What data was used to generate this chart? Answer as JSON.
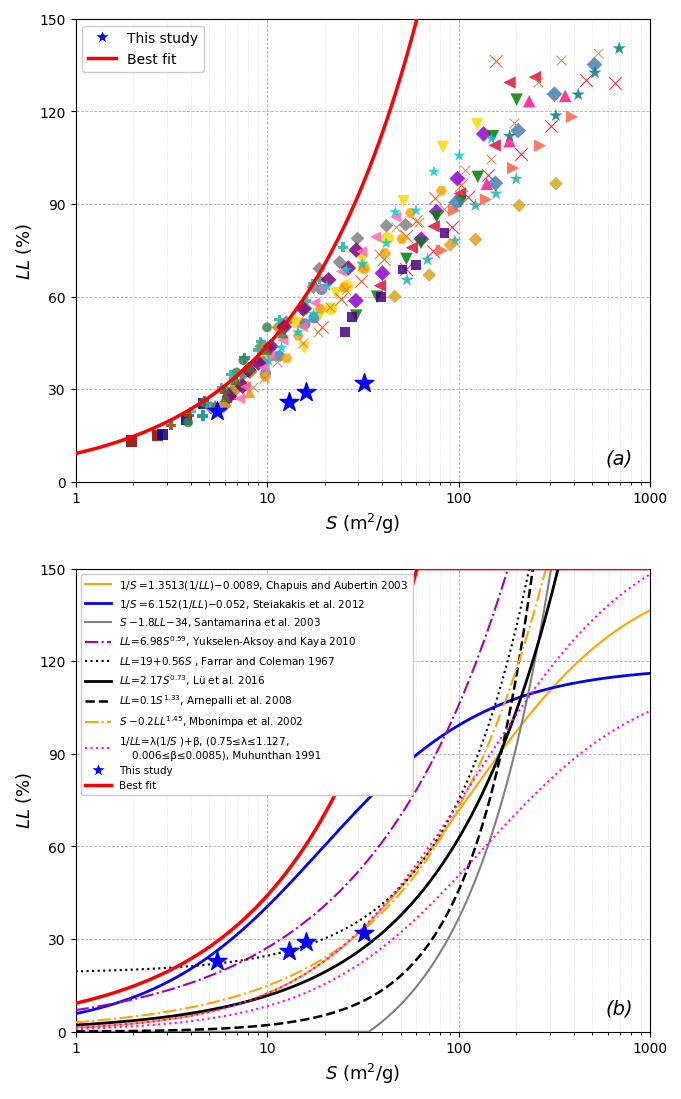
{
  "this_study_S": [
    5.5,
    13.0,
    16.0,
    32.0
  ],
  "this_study_LL": [
    23,
    26,
    29,
    32
  ],
  "best_fit_a": 9.2,
  "best_fit_b": 0.68,
  "ylim": [
    0,
    150
  ],
  "yticks": [
    0,
    30,
    60,
    90,
    120,
    150
  ],
  "panel_a_label": "(a)",
  "panel_b_label": "(b)",
  "scatter_datasets": [
    {
      "S": [
        2.0,
        2.5
      ],
      "LL": [
        13,
        15
      ],
      "color": "#8B0000",
      "marker": "s",
      "ms": 8
    },
    {
      "S": [
        3.0,
        4.0,
        5.0
      ],
      "LL": [
        15,
        20,
        25
      ],
      "color": "#00008B",
      "marker": "s",
      "ms": 8
    },
    {
      "S": [
        5.0,
        6.0,
        7.0,
        8.0
      ],
      "LL": [
        22,
        28,
        35,
        40
      ],
      "color": "#008B8B",
      "marker": "P",
      "ms": 8
    },
    {
      "S": [
        6.0,
        7.0,
        8.0,
        10.0,
        12.0
      ],
      "LL": [
        25,
        30,
        35,
        45,
        50
      ],
      "color": "#B8860B",
      "marker": "D",
      "ms": 8
    },
    {
      "S": [
        8.0,
        10.0,
        15.0,
        20.0
      ],
      "LL": [
        30,
        38,
        50,
        65
      ],
      "color": "#FF8C00",
      "marker": "^",
      "ms": 8
    },
    {
      "S": [
        4.0,
        5.0,
        6.0,
        7.0,
        8.0,
        10.0
      ],
      "LL": [
        20,
        25,
        30,
        35,
        40,
        50
      ],
      "color": "#2E8B57",
      "marker": "o",
      "ms": 7
    },
    {
      "S": [
        10.0,
        15.0,
        20.0,
        25.0,
        30.0,
        40.0
      ],
      "LL": [
        40,
        50,
        58,
        65,
        72,
        80
      ],
      "color": "#FFD700",
      "marker": "o",
      "ms": 9
    },
    {
      "S": [
        10.0,
        12.0,
        15.0,
        18.0,
        20.0
      ],
      "LL": [
        35,
        42,
        50,
        55,
        60
      ],
      "color": "#4682B4",
      "marker": "o",
      "ms": 8
    },
    {
      "S": [
        15.0,
        20.0,
        25.0,
        30.0,
        50.0,
        80.0,
        120.0
      ],
      "LL": [
        45,
        55,
        63,
        70,
        90,
        110,
        120
      ],
      "color": "#FFD700",
      "marker": "v",
      "ms": 9
    },
    {
      "S": [
        20.0,
        25.0,
        30.0,
        40.0,
        50.0,
        60.0,
        80.0,
        100.0,
        150.0
      ],
      "LL": [
        50,
        58,
        65,
        72,
        80,
        88,
        95,
        100,
        135
      ],
      "color": "#FF4500",
      "marker": "x",
      "ms": 9
    },
    {
      "S": [
        30.0,
        40.0,
        60.0,
        80.0,
        100.0,
        130.0
      ],
      "LL": [
        60,
        70,
        80,
        90,
        95,
        110
      ],
      "color": "#9400D3",
      "marker": "D",
      "ms": 8
    },
    {
      "S": [
        5.0,
        6.0,
        7.0,
        8.0,
        9.0,
        10.0,
        12.0,
        15.0,
        18.0,
        20.0,
        25.0,
        30.0,
        40.0,
        50.0
      ],
      "LL": [
        25,
        28,
        32,
        36,
        40,
        44,
        50,
        57,
        63,
        68,
        72,
        76,
        80,
        85
      ],
      "color": "#808080",
      "marker": "D",
      "ms": 7
    },
    {
      "S": [
        4.0,
        5.0,
        6.0,
        7.0,
        8.0,
        9.0,
        10.0,
        12.0,
        15.0,
        18.0,
        20.0,
        25.0
      ],
      "LL": [
        22,
        26,
        30,
        34,
        38,
        42,
        46,
        52,
        58,
        64,
        68,
        74
      ],
      "color": "#20B2AA",
      "marker": "P",
      "ms": 7
    },
    {
      "S": [
        40.0,
        60.0,
        80.0,
        100.0,
        150.0,
        200.0,
        250.0
      ],
      "LL": [
        65,
        75,
        85,
        92,
        110,
        125,
        135
      ],
      "color": "#DC143C",
      "marker": "<",
      "ms": 9
    },
    {
      "S": [
        30.0,
        40.0,
        50.0,
        60.0,
        80.0,
        100.0,
        120.0,
        150.0,
        200.0
      ],
      "LL": [
        55,
        62,
        70,
        75,
        85,
        92,
        100,
        110,
        120
      ],
      "color": "#008000",
      "marker": "v",
      "ms": 9
    },
    {
      "S": [
        50.0,
        70.0,
        90.0,
        120.0,
        150.0,
        200.0,
        300.0,
        500.0,
        700.0
      ],
      "LL": [
        68,
        78,
        85,
        92,
        98,
        105,
        118,
        128,
        132
      ],
      "color": "#DC143C",
      "marker": "x",
      "ms": 9
    },
    {
      "S": [
        100.0,
        150.0,
        200.0,
        300.0,
        500.0
      ],
      "LL": [
        90,
        100,
        115,
        128,
        138
      ],
      "color": "#4682B4",
      "marker": "D",
      "ms": 8
    },
    {
      "S": [
        50.0,
        70.0,
        90.0,
        120.0,
        150.0,
        200.0
      ],
      "LL": [
        65,
        72,
        80,
        88,
        95,
        102
      ],
      "color": "#20B2AA",
      "marker": "*",
      "ms": 10
    },
    {
      "S": [
        80.0,
        100.0,
        130.0,
        180.0,
        250.0,
        400.0
      ],
      "LL": [
        78,
        85,
        92,
        98,
        105,
        115
      ],
      "color": "#FF6347",
      "marker": ">",
      "ms": 9
    },
    {
      "S": [
        8.0,
        10.0,
        12.0,
        15.0,
        20.0,
        25.0,
        30.0,
        40.0,
        50.0,
        60.0,
        80.0
      ],
      "LL": [
        30,
        35,
        40,
        46,
        55,
        62,
        68,
        75,
        80,
        85,
        92
      ],
      "color": "#FFA500",
      "marker": "H",
      "ms": 8
    },
    {
      "S": [
        6.0,
        7.0,
        8.0,
        9.0,
        10.0,
        12.0,
        15.0,
        20.0,
        25.0,
        30.0
      ],
      "LL": [
        28,
        32,
        36,
        40,
        44,
        50,
        57,
        65,
        72,
        78
      ],
      "color": "#800080",
      "marker": "D",
      "ms": 8
    },
    {
      "S": [
        3.0,
        4.0,
        5.0,
        6.0
      ],
      "LL": [
        18,
        22,
        26,
        30
      ],
      "color": "#8B4513",
      "marker": "P",
      "ms": 7
    },
    {
      "S": [
        50.0,
        70.0,
        90.0,
        120.0,
        200.0,
        300.0
      ],
      "LL": [
        60,
        68,
        75,
        80,
        90,
        100
      ],
      "color": "#DAA520",
      "marker": "D",
      "ms": 7
    },
    {
      "S": [
        200.0,
        300.0,
        400.0,
        500.0,
        700.0
      ],
      "LL": [
        115,
        122,
        128,
        132,
        138
      ],
      "color": "#008080",
      "marker": "*",
      "ms": 10
    },
    {
      "S": [
        7.0,
        8.0,
        9.0,
        10.0,
        12.0,
        15.0,
        18.0,
        20.0,
        25.0,
        30.0,
        40.0,
        50.0
      ],
      "LL": [
        28,
        32,
        36,
        40,
        46,
        52,
        58,
        63,
        70,
        75,
        80,
        85
      ],
      "color": "#FF69B4",
      "marker": "<",
      "ms": 8
    },
    {
      "S": [
        25.0,
        30.0,
        40.0,
        50.0,
        60.0,
        80.0
      ],
      "LL": [
        48,
        55,
        62,
        68,
        73,
        80
      ],
      "color": "#4B0082",
      "marker": "s",
      "ms": 7
    },
    {
      "S": [
        5.0,
        6.0,
        7.0,
        8.0,
        10.0,
        12.0
      ],
      "LL": [
        24,
        28,
        32,
        36,
        44,
        50
      ],
      "color": "#556B2F",
      "marker": "^",
      "ms": 8
    },
    {
      "S": [
        150.0,
        200.0,
        250.0,
        350.0
      ],
      "LL": [
        100,
        112,
        120,
        130
      ],
      "color": "#FF1493",
      "marker": "^",
      "ms": 9
    },
    {
      "S": [
        8.0,
        10.0,
        12.0,
        15.0,
        18.0,
        20.0,
        25.0,
        30.0,
        40.0,
        50.0,
        60.0,
        80.0,
        100.0,
        150.0,
        200.0,
        250.0,
        350.0,
        500.0
      ],
      "LL": [
        30,
        34,
        38,
        44,
        50,
        55,
        62,
        68,
        75,
        80,
        85,
        92,
        98,
        108,
        118,
        125,
        132,
        138
      ],
      "color": "#CD853F",
      "marker": "x",
      "ms": 7
    },
    {
      "S": [
        10.0,
        12.0,
        15.0,
        18.0,
        20.0,
        25.0,
        30.0,
        40.0,
        50.0,
        60.0,
        80.0,
        100.0,
        150.0
      ],
      "LL": [
        38,
        44,
        50,
        56,
        62,
        68,
        73,
        80,
        86,
        91,
        98,
        104,
        115
      ],
      "color": "#00CED1",
      "marker": "*",
      "ms": 9
    }
  ]
}
